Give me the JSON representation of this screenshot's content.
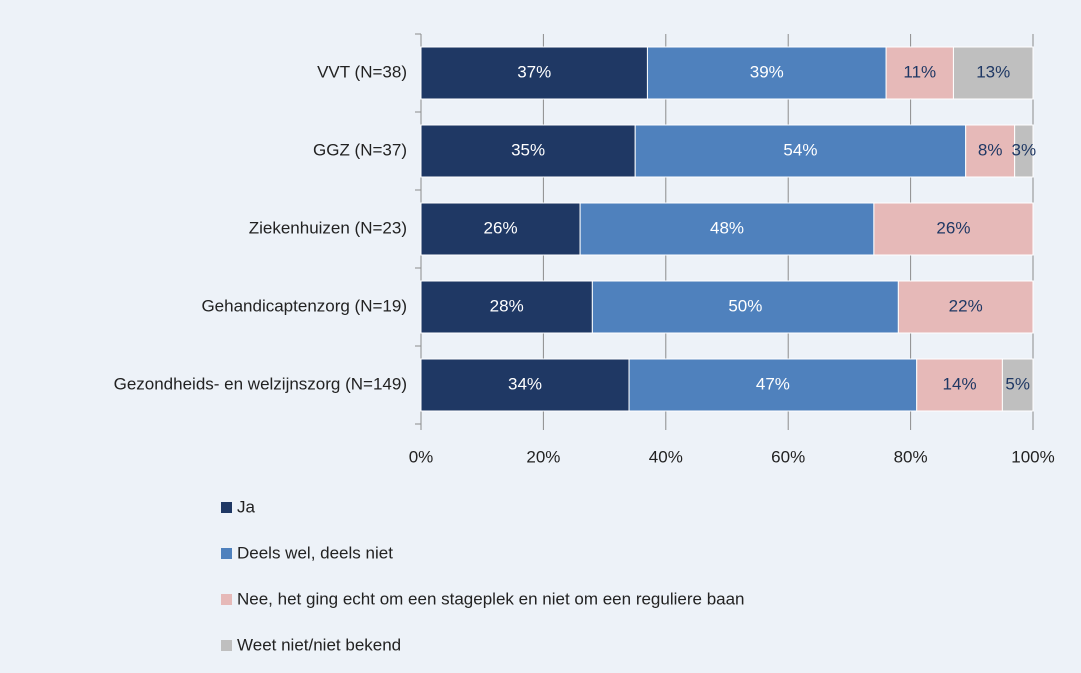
{
  "chart_data": {
    "type": "stacked-bar-horizontal",
    "categories": [
      "VVT (N=38)",
      "GGZ (N=37)",
      "Ziekenhuizen (N=23)",
      "Gehandicaptenzorg (N=19)",
      "Gezondheids- en welzijnszorg (N=149)"
    ],
    "series": [
      {
        "name": "Ja",
        "color": "#1f3864",
        "values": [
          37,
          35,
          26,
          28,
          34
        ],
        "value_labels": [
          "37%",
          "35%",
          "26%",
          "28%",
          "34%"
        ]
      },
      {
        "name": "Deels wel, deels niet",
        "color": "#4f81bd",
        "values": [
          39,
          54,
          48,
          50,
          47
        ],
        "value_labels": [
          "39%",
          "54%",
          "48%",
          "50%",
          "47%"
        ]
      },
      {
        "name": "Nee, het ging echt om een stageplek en niet om een reguliere baan",
        "color": "#e6b9b8",
        "values": [
          11,
          8,
          26,
          22,
          14
        ],
        "value_labels": [
          "11%",
          "8%",
          "26%",
          "22%",
          "14%"
        ]
      },
      {
        "name": "Weet niet/niet bekend",
        "color": "#bfbfbf",
        "values": [
          13,
          3,
          0,
          0,
          5
        ],
        "value_labels": [
          "13%",
          "3%",
          null,
          null,
          "5%"
        ]
      }
    ],
    "xlim": [
      0,
      100
    ],
    "xticks": [
      {
        "value": 0,
        "label": "0%"
      },
      {
        "value": 20,
        "label": "20%"
      },
      {
        "value": 40,
        "label": "40%"
      },
      {
        "value": 60,
        "label": "60%"
      },
      {
        "value": 80,
        "label": "80%"
      },
      {
        "value": 100,
        "label": "100%"
      }
    ],
    "grid": true
  }
}
